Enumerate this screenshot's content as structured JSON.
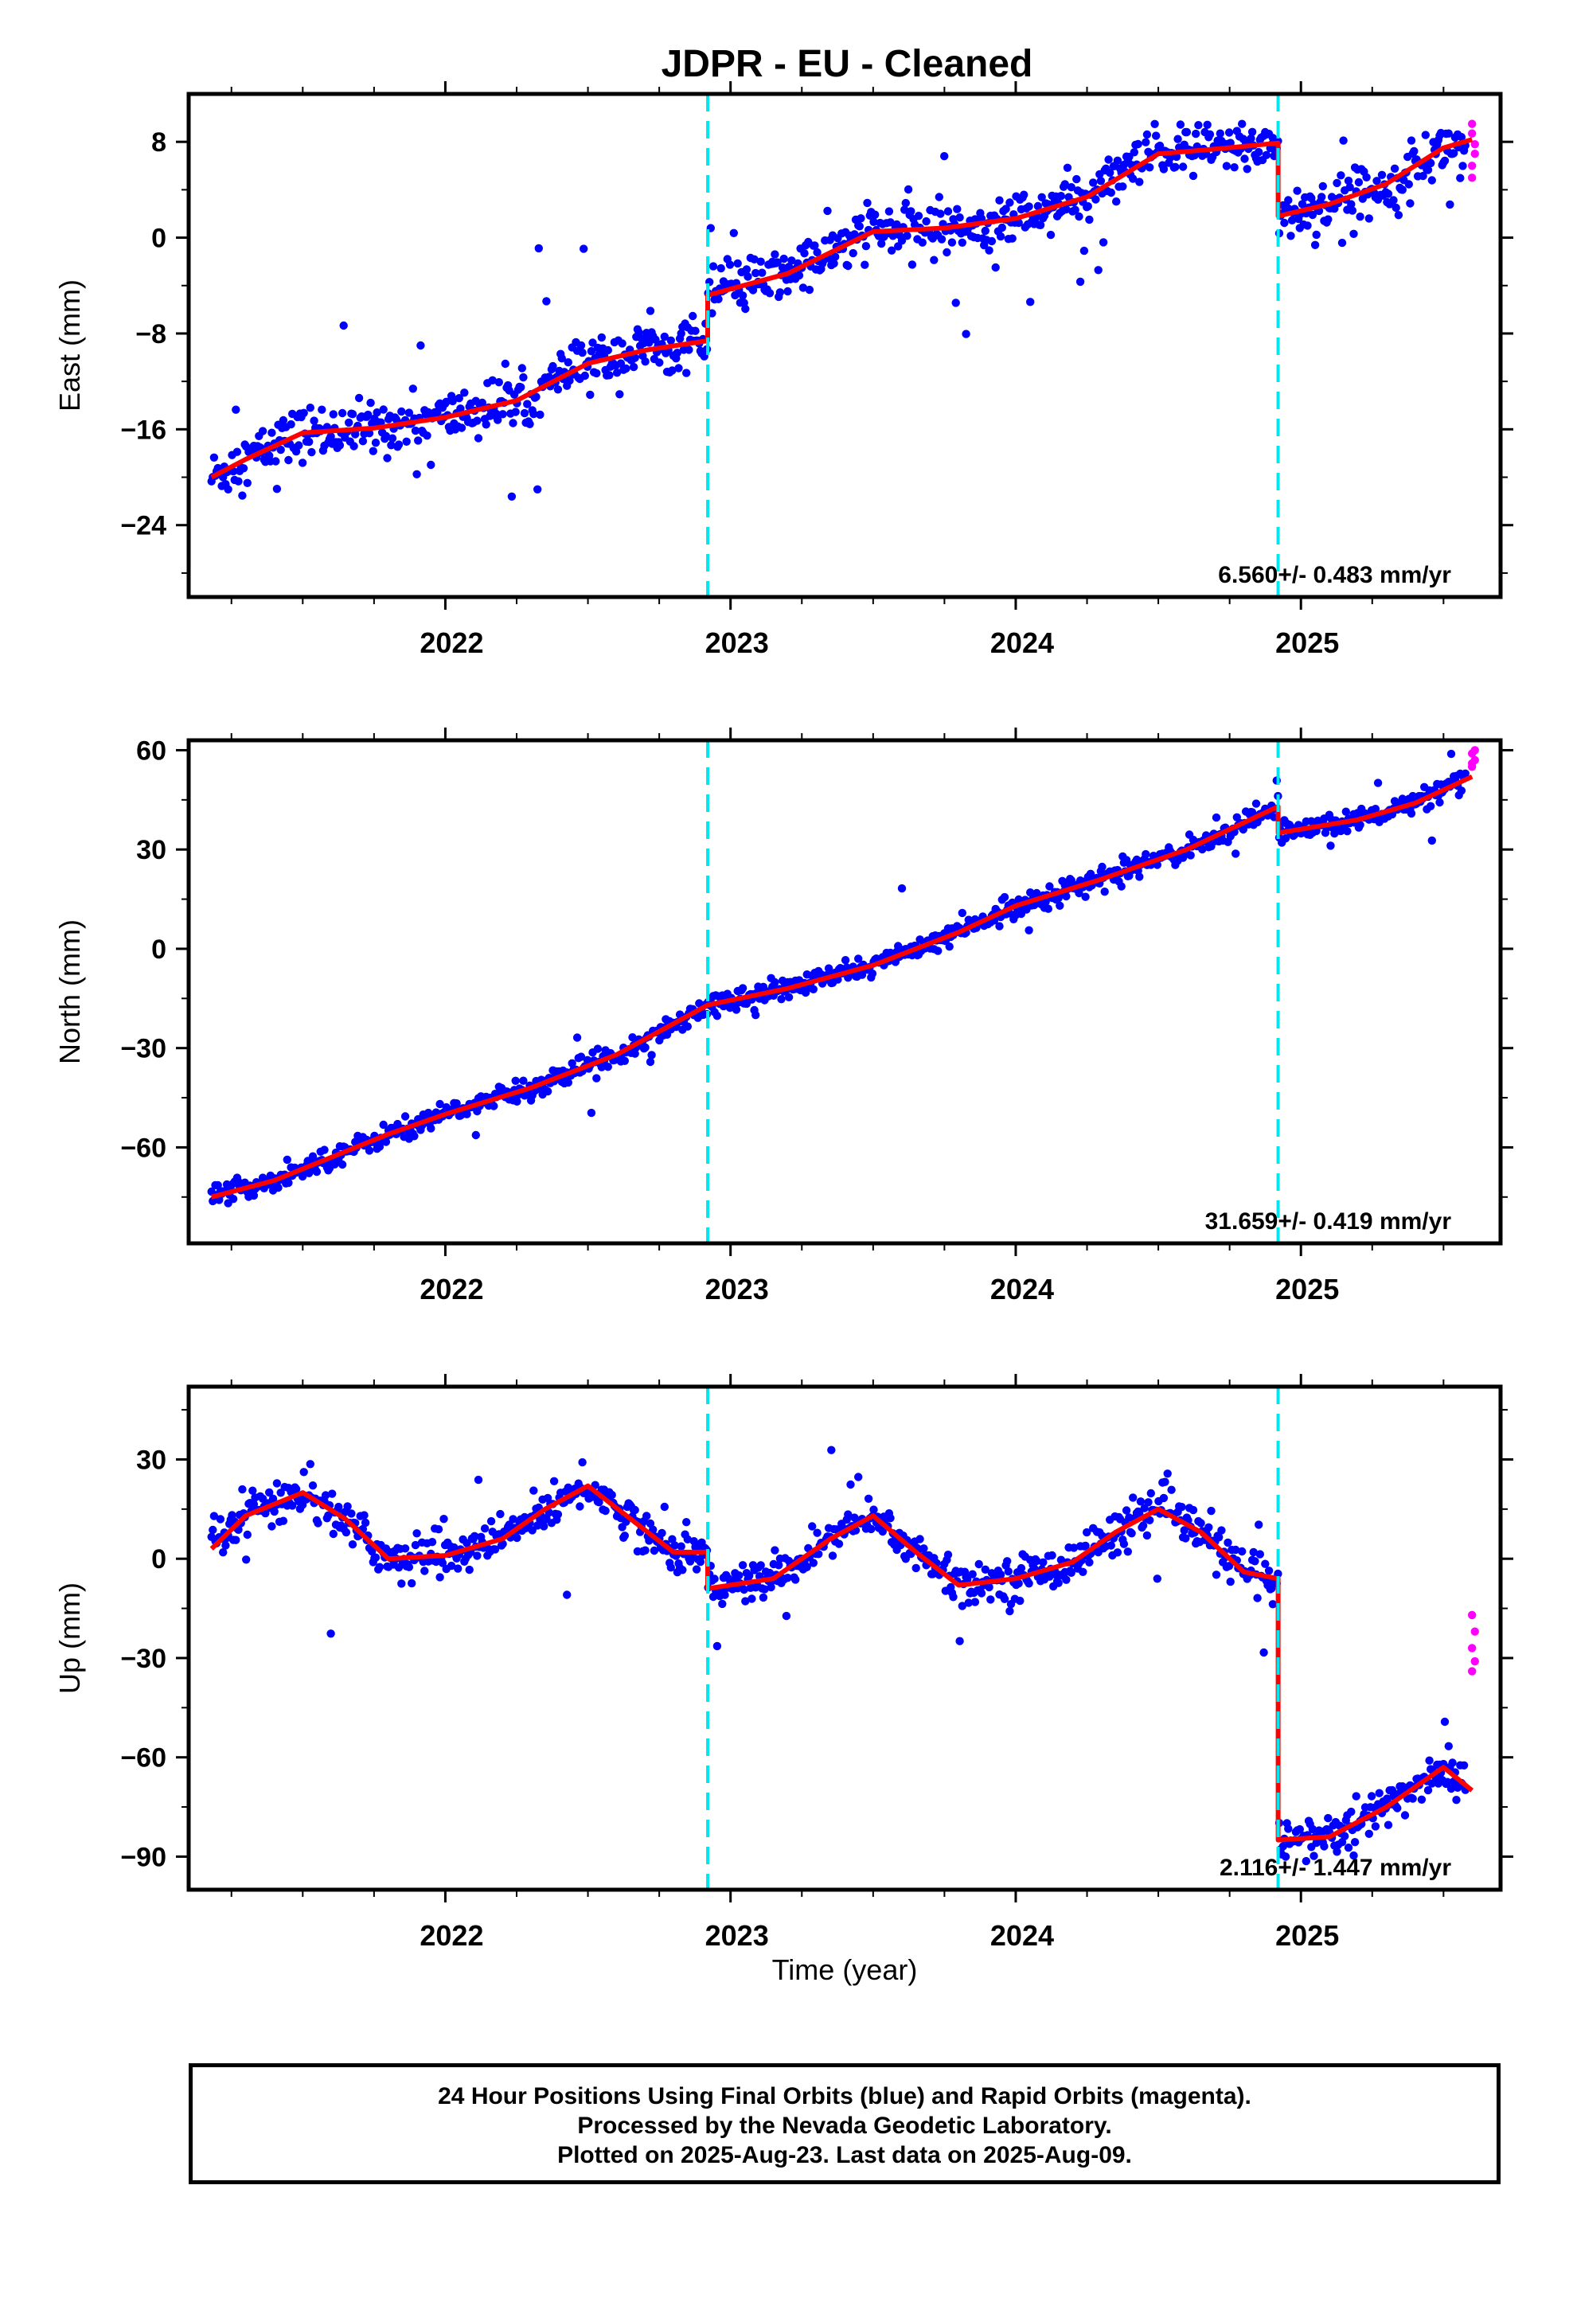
{
  "title": "JDPR  - EU - Cleaned",
  "xlabel": "Time (year)",
  "footer": {
    "line1": "24 Hour Positions Using Final Orbits (blue) and Rapid Orbits (magenta).",
    "line2": "Processed by the Nevada Geodetic Laboratory.",
    "line3": "Plotted on 2025-Aug-23. Last data on 2025-Aug-09."
  },
  "colors": {
    "final_orbits": "#0000ff",
    "rapid_orbits": "#ff00ff",
    "model_fit": "#ff0000",
    "equipment_change": "#00e5ee"
  },
  "chart_data": [
    {
      "type": "scatter",
      "component": "east",
      "ylabel": "East (mm)",
      "xlim": [
        2021.1,
        2025.7
      ],
      "ylim": [
        -30,
        12
      ],
      "yticks": [
        -24,
        -16,
        -8,
        0,
        8
      ],
      "xticks": [
        2022,
        2023,
        2024,
        2025
      ],
      "grid": false,
      "velocity_label": "6.560+/- 0.483 mm/yr",
      "vertical_lines": [
        2022.92,
        2024.92
      ],
      "model": {
        "offsets": [
          {
            "x": 2021.18,
            "y": -20.0
          },
          {
            "x": 2022.92,
            "y": -4.8
          },
          {
            "x": 2024.92,
            "y": 1.8
          }
        ],
        "trend_points": [
          [
            2021.18,
            -20.0
          ],
          [
            2021.3,
            -18.5
          ],
          [
            2021.5,
            -16.3
          ],
          [
            2021.75,
            -15.9
          ],
          [
            2022.0,
            -15.0
          ],
          [
            2022.25,
            -13.6
          ],
          [
            2022.5,
            -10.5
          ],
          [
            2022.7,
            -9.4
          ],
          [
            2022.92,
            -8.6
          ],
          [
            2022.92,
            -4.8
          ],
          [
            2023.2,
            -3.0
          ],
          [
            2023.5,
            0.5
          ],
          [
            2023.75,
            0.8
          ],
          [
            2024.0,
            1.6
          ],
          [
            2024.25,
            3.4
          ],
          [
            2024.5,
            7.0
          ],
          [
            2024.7,
            7.4
          ],
          [
            2024.92,
            7.9
          ],
          [
            2024.92,
            1.8
          ],
          [
            2025.1,
            2.8
          ],
          [
            2025.3,
            4.5
          ],
          [
            2025.5,
            7.5
          ],
          [
            2025.6,
            8.2
          ]
        ]
      },
      "rapid_points": [
        [
          2025.6,
          9.5
        ],
        [
          2025.6,
          8.7
        ],
        [
          2025.61,
          7.8
        ],
        [
          2025.61,
          7.0
        ],
        [
          2025.6,
          6.0
        ],
        [
          2025.6,
          5.0
        ]
      ]
    },
    {
      "type": "scatter",
      "component": "north",
      "ylabel": "North (mm)",
      "xlim": [
        2021.1,
        2025.7
      ],
      "ylim": [
        -89,
        63
      ],
      "yticks": [
        -60,
        -30,
        0,
        30,
        60
      ],
      "xticks": [
        2022,
        2023,
        2024,
        2025
      ],
      "grid": false,
      "velocity_label": "31.659+/- 0.419 mm/yr",
      "vertical_lines": [
        2022.92,
        2024.92
      ],
      "model": {
        "trend_points": [
          [
            2021.18,
            -75.0
          ],
          [
            2021.4,
            -70.0
          ],
          [
            2021.6,
            -63.0
          ],
          [
            2021.8,
            -56.0
          ],
          [
            2022.0,
            -50.0
          ],
          [
            2022.3,
            -42.0
          ],
          [
            2022.6,
            -32.0
          ],
          [
            2022.92,
            -17.0
          ],
          [
            2023.2,
            -12.0
          ],
          [
            2023.5,
            -5.0
          ],
          [
            2023.8,
            5.0
          ],
          [
            2024.0,
            13.0
          ],
          [
            2024.3,
            21.0
          ],
          [
            2024.6,
            30.0
          ],
          [
            2024.92,
            43.0
          ],
          [
            2024.92,
            35.0
          ],
          [
            2025.2,
            39.0
          ],
          [
            2025.4,
            44.0
          ],
          [
            2025.6,
            52.0
          ]
        ]
      },
      "rapid_points": [
        [
          2025.6,
          55.0
        ],
        [
          2025.61,
          57.0
        ],
        [
          2025.6,
          59.0
        ],
        [
          2025.61,
          60.0
        ],
        [
          2025.6,
          56.0
        ]
      ]
    },
    {
      "type": "scatter",
      "component": "up",
      "ylabel": "Up (mm)",
      "xlim": [
        2021.1,
        2025.7
      ],
      "ylim": [
        -100,
        52
      ],
      "yticks": [
        -90,
        -60,
        -30,
        0,
        30
      ],
      "xticks": [
        2022,
        2023,
        2024,
        2025
      ],
      "grid": false,
      "velocity_label": "2.116+/- 1.447 mm/yr",
      "vertical_lines": [
        2022.92,
        2024.92
      ],
      "model": {
        "trend_points": [
          [
            2021.18,
            3.0
          ],
          [
            2021.3,
            13.0
          ],
          [
            2021.5,
            20.0
          ],
          [
            2021.65,
            12.0
          ],
          [
            2021.8,
            0.0
          ],
          [
            2022.0,
            1.0
          ],
          [
            2022.2,
            6.0
          ],
          [
            2022.35,
            15.0
          ],
          [
            2022.5,
            22.0
          ],
          [
            2022.65,
            12.0
          ],
          [
            2022.8,
            2.0
          ],
          [
            2022.92,
            2.0
          ],
          [
            2022.92,
            -9.0
          ],
          [
            2023.15,
            -6.0
          ],
          [
            2023.35,
            6.0
          ],
          [
            2023.5,
            13.0
          ],
          [
            2023.65,
            2.0
          ],
          [
            2023.8,
            -8.0
          ],
          [
            2024.0,
            -6.0
          ],
          [
            2024.2,
            -1.0
          ],
          [
            2024.35,
            8.0
          ],
          [
            2024.5,
            15.0
          ],
          [
            2024.65,
            8.0
          ],
          [
            2024.8,
            -4.0
          ],
          [
            2024.92,
            -6.0
          ],
          [
            2024.92,
            -85.0
          ],
          [
            2025.1,
            -84.0
          ],
          [
            2025.3,
            -75.0
          ],
          [
            2025.5,
            -63.0
          ],
          [
            2025.6,
            -70.0
          ]
        ]
      },
      "rapid_points": [
        [
          2025.6,
          -17.0
        ],
        [
          2025.61,
          -22.0
        ],
        [
          2025.6,
          -27.0
        ],
        [
          2025.61,
          -31.0
        ],
        [
          2025.6,
          -34.0
        ]
      ]
    }
  ]
}
